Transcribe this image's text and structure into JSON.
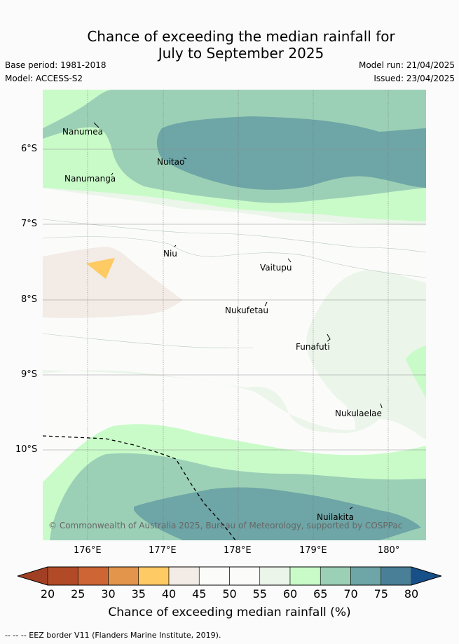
{
  "title": {
    "line1": "Chance of exceeding the median rainfall for",
    "line2": "July to September 2025"
  },
  "meta": {
    "base_period": "Base period: 1981-2018",
    "model": "Model: ACCESS-S2",
    "model_run": "Model run: 21/04/2025",
    "issued": "Issued: 23/04/2025"
  },
  "map": {
    "lat_labels": [
      "6°S",
      "7°S",
      "8°S",
      "9°S",
      "10°S"
    ],
    "lon_labels": [
      "176°E",
      "177°E",
      "178°E",
      "179°E",
      "180°"
    ],
    "islands": [
      "Nanumea",
      "Nuitao",
      "Nanumanga",
      "Niu",
      "Vaitupu",
      "Nukufetau",
      "Funafuti",
      "Nukulaelae",
      "Nuilakita"
    ],
    "copyright": "© Commonwealth of Australia 2025, Bureau of Meteorology, supported by COSPPac"
  },
  "colorbar": {
    "ticks": [
      "20",
      "25",
      "30",
      "35",
      "40",
      "45",
      "50",
      "55",
      "60",
      "65",
      "70",
      "75",
      "80"
    ],
    "colors": [
      "#b34a27",
      "#cd6535",
      "#e2954b",
      "#fdca63",
      "#f2ebe6",
      "#fbfcfa",
      "#fbfcfa",
      "#ebf5ea",
      "#c9fbc9",
      "#9cd0b6",
      "#6ea5a6",
      "#4a7f98"
    ],
    "under_color": "#a13f24",
    "over_color": "#174f88",
    "label": "Chance of exceeding median rainfall (%)"
  },
  "footer": "-- -- -- EEZ border V11 (Flanders Marine Institute, 2019)."
}
